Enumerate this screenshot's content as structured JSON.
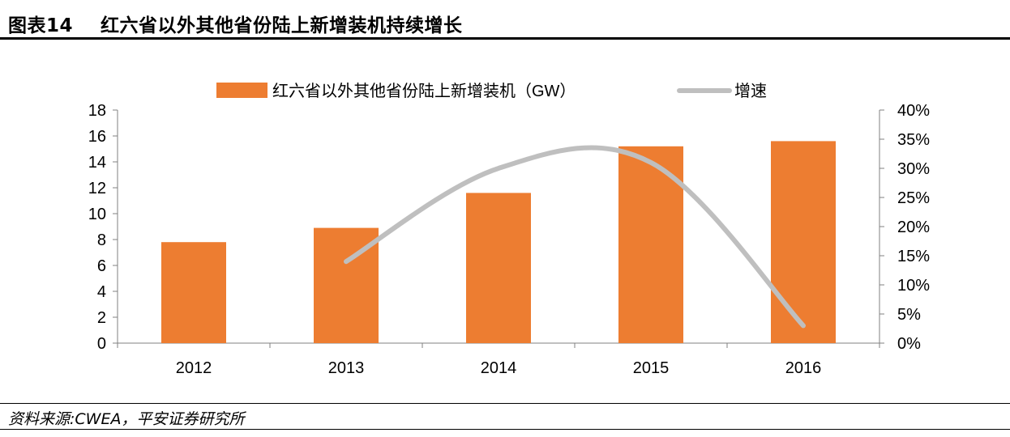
{
  "figure": {
    "label": "图表14",
    "title": "红六省以外其他省份陆上新增装机持续增长",
    "source": "资料来源:CWEA，平安证券研究所"
  },
  "chart_data": {
    "type": "bar",
    "categories": [
      "2012",
      "2013",
      "2014",
      "2015",
      "2016"
    ],
    "series": [
      {
        "name": "红六省以外其他省份陆上新增装机（GW）",
        "type": "bar",
        "axis": "left",
        "color": "#ED7D31",
        "values": [
          7.8,
          8.9,
          11.6,
          15.2,
          15.6
        ]
      },
      {
        "name": "增速",
        "type": "line",
        "axis": "right",
        "color": "#BFBFBF",
        "values": [
          null,
          0.14,
          0.3,
          0.31,
          0.03
        ]
      }
    ],
    "y_left": {
      "ylim": [
        0,
        18
      ],
      "ticks": [
        0,
        2,
        4,
        6,
        8,
        10,
        12,
        14,
        16,
        18
      ],
      "tick_labels": [
        "0",
        "2",
        "4",
        "6",
        "8",
        "10",
        "12",
        "14",
        "16",
        "18"
      ]
    },
    "y_right": {
      "ylim": [
        0,
        0.4
      ],
      "ticks": [
        0,
        0.05,
        0.1,
        0.15,
        0.2,
        0.25,
        0.3,
        0.35,
        0.4
      ],
      "tick_labels": [
        "0%",
        "5%",
        "10%",
        "15%",
        "20%",
        "25%",
        "30%",
        "35%",
        "40%"
      ]
    },
    "grid": false,
    "legend": "top"
  }
}
